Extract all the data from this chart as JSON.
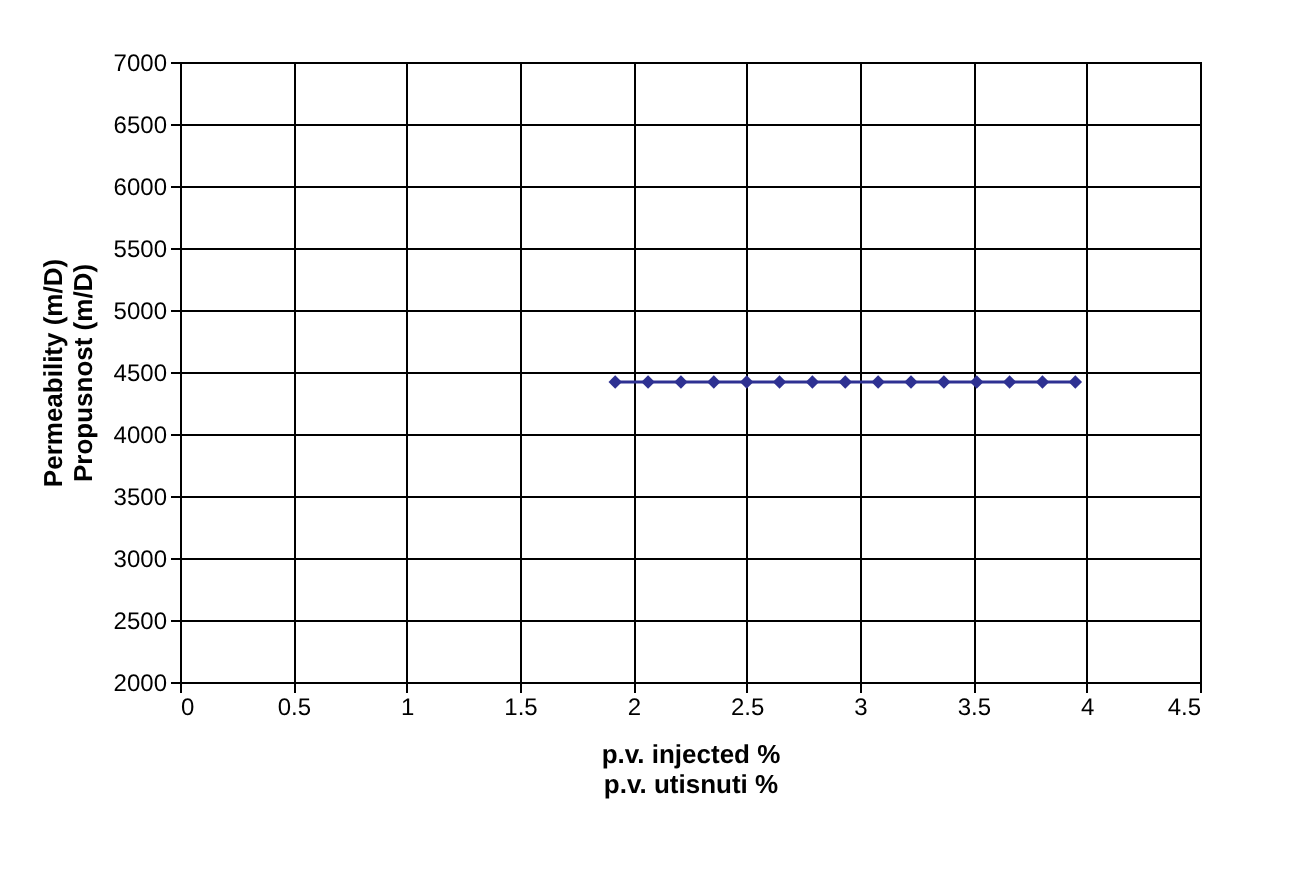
{
  "chart_data": {
    "type": "line",
    "xlabel": "p.v. injected %\np.v. utisnuti %",
    "ylabel": "Permeability (m/D)\nPropusnost (m/D)",
    "x": [
      1.92,
      2.065,
      2.21,
      2.355,
      2.5,
      2.645,
      2.79,
      2.935,
      3.08,
      3.225,
      3.37,
      3.515,
      3.66,
      3.805,
      3.95
    ],
    "series": [
      {
        "color": "#2e3192",
        "values": [
          4420,
          4420,
          4420,
          4420,
          4420,
          4420,
          4420,
          4420,
          4420,
          4420,
          4420,
          4420,
          4420,
          4420,
          4420
        ]
      }
    ],
    "xlim": [
      0,
      4.5
    ],
    "xticks": [
      0,
      0.5,
      1,
      1.5,
      2,
      2.5,
      3,
      3.5,
      4,
      4.5
    ],
    "ylim": [
      2000,
      7000
    ],
    "yticks": [
      2000,
      2500,
      3000,
      3500,
      4000,
      4500,
      5000,
      5500,
      6000,
      6500,
      7000
    ],
    "grid": true,
    "marker": "diamond",
    "line_style": "solid"
  }
}
